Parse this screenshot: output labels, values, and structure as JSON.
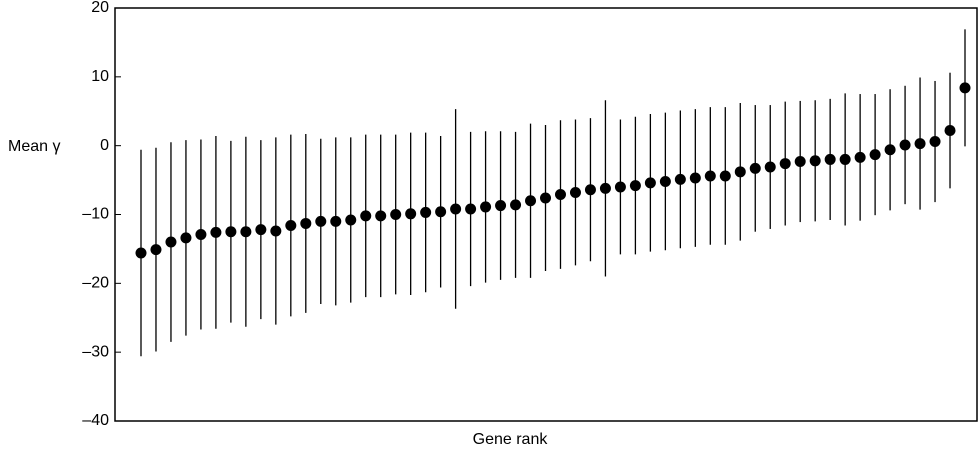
{
  "chart_data": {
    "type": "errorbar",
    "x_label": "Gene rank",
    "y_label": "Mean γ",
    "values": [
      -15.6,
      -15.1,
      -14.0,
      -13.4,
      -12.9,
      -12.6,
      -12.5,
      -12.5,
      -12.2,
      -12.4,
      -11.6,
      -11.3,
      -11.0,
      -11.0,
      -10.8,
      -10.2,
      -10.2,
      -10.0,
      -9.9,
      -9.7,
      -9.6,
      -9.2,
      -9.2,
      -8.9,
      -8.7,
      -8.6,
      -8.0,
      -7.6,
      -7.1,
      -6.8,
      -6.4,
      -6.2,
      -6.0,
      -5.8,
      -5.4,
      -5.2,
      -4.9,
      -4.7,
      -4.4,
      -4.4,
      -3.8,
      -3.3,
      -3.1,
      -2.6,
      -2.3,
      -2.2,
      -2.0,
      -2.0,
      -1.7,
      -1.3,
      -0.6,
      0.1,
      0.3,
      0.6,
      2.2,
      8.4
    ],
    "errors": [
      15.0,
      14.8,
      14.5,
      14.2,
      13.8,
      14.0,
      13.2,
      13.8,
      13.0,
      13.6,
      13.2,
      13.0,
      12.0,
      12.2,
      12.0,
      11.8,
      11.8,
      11.6,
      11.8,
      11.6,
      11.0,
      14.5,
      11.2,
      11.0,
      10.8,
      10.6,
      11.2,
      10.6,
      10.8,
      10.6,
      10.4,
      12.8,
      9.8,
      10.0,
      10.0,
      10.0,
      10.0,
      10.0,
      10.0,
      10.0,
      10.0,
      9.2,
      9.0,
      9.0,
      8.8,
      8.8,
      8.8,
      9.6,
      9.2,
      8.8,
      8.8,
      8.6,
      9.6,
      8.8,
      8.4,
      8.5
    ],
    "color": "#000000",
    "ylim": [
      -40,
      20
    ],
    "yticks": [
      {
        "value": -40,
        "label": "–40"
      },
      {
        "value": -30,
        "label": "–30"
      },
      {
        "value": -20,
        "label": "–20"
      },
      {
        "value": -10,
        "label": "–10"
      },
      0,
      10,
      20
    ]
  }
}
